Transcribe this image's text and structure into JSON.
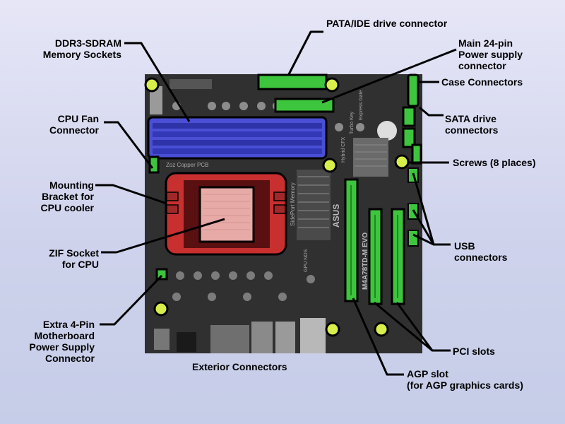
{
  "board": {
    "brand_text": "ASUS",
    "model_text": "M4A78TD-M EVO",
    "sideport_text": "SidePort Memory",
    "copper_text": "Zoz Copper PCB",
    "hybrid_text": "Hybrid CFX",
    "turbo_text": "Turbo Key",
    "express_text": "Express Gate",
    "gpu_text": "GPU NOS"
  },
  "labels": {
    "pata": [
      "PATA/IDE drive connector"
    ],
    "ddr3": [
      "DDR3-SDRAM",
      "Memory Sockets"
    ],
    "main_power": [
      "Main 24-pin",
      "Power supply",
      "connector"
    ],
    "case_conn": [
      "Case Connectors"
    ],
    "cpu_fan": [
      "CPU Fan",
      "Connector"
    ],
    "sata": [
      "SATA drive",
      "connectors"
    ],
    "screws": [
      "Screws (8 places)"
    ],
    "mounting": [
      "Mounting",
      "Bracket for",
      "CPU cooler"
    ],
    "usb": [
      "USB",
      "connectors"
    ],
    "zif": [
      "ZIF Socket",
      "for CPU"
    ],
    "extra_power": [
      "Extra 4-Pin",
      "Motherboard",
      "Power Supply",
      "Connector"
    ],
    "pci": [
      "PCI slots"
    ],
    "exterior": [
      "Exterior Connectors"
    ],
    "agp": [
      "AGP slot",
      "(for AGP graphics cards)"
    ]
  },
  "colors": {
    "board": "#2b2b2b",
    "memory": "#4a4fd6",
    "bracket": "#c8302f",
    "socket": "#e7aaa6",
    "slot": "#3ec53e",
    "screw": "#d8ee4a",
    "leader": "#000000"
  }
}
